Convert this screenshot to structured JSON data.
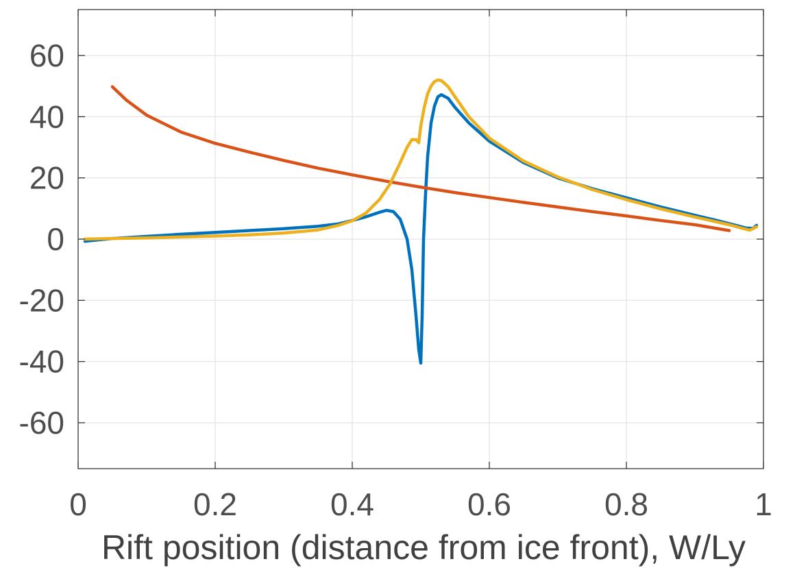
{
  "chart_data": {
    "type": "line",
    "title": "",
    "xlabel": "Rift position (distance from ice front), W/Ly",
    "ylabel": "",
    "xlim": [
      0,
      1
    ],
    "ylim": [
      -75,
      75
    ],
    "grid": true,
    "x_ticks": [
      0,
      0.2,
      0.4,
      0.6,
      0.8,
      1
    ],
    "x_tick_labels": [
      "0",
      "0.2",
      "0.4",
      "0.6",
      "0.8",
      "1"
    ],
    "y_ticks": [
      60,
      40,
      20,
      0,
      -20,
      -40,
      -60
    ],
    "y_tick_labels": [
      "60",
      "40",
      "20",
      "0",
      "-20",
      "-40",
      "-60"
    ],
    "series": [
      {
        "color": "#0072BD",
        "points": [
          [
            0.01,
            -0.7
          ],
          [
            0.05,
            0.2
          ],
          [
            0.1,
            0.9
          ],
          [
            0.15,
            1.6
          ],
          [
            0.2,
            2.2
          ],
          [
            0.25,
            2.8
          ],
          [
            0.3,
            3.4
          ],
          [
            0.35,
            4.2
          ],
          [
            0.38,
            5.0
          ],
          [
            0.4,
            6.1
          ],
          [
            0.42,
            7.3
          ],
          [
            0.44,
            8.8
          ],
          [
            0.45,
            9.4
          ],
          [
            0.46,
            9.0
          ],
          [
            0.47,
            6.5
          ],
          [
            0.48,
            0.0
          ],
          [
            0.487,
            -10.0
          ],
          [
            0.493,
            -25.0
          ],
          [
            0.497,
            -36.0
          ],
          [
            0.5,
            -40.5
          ],
          [
            0.502,
            -25.0
          ],
          [
            0.504,
            0.0
          ],
          [
            0.507,
            15.0
          ],
          [
            0.51,
            27.0
          ],
          [
            0.515,
            38.0
          ],
          [
            0.52,
            43.5
          ],
          [
            0.525,
            46.5
          ],
          [
            0.53,
            47.2
          ],
          [
            0.54,
            46.0
          ],
          [
            0.55,
            43.0
          ],
          [
            0.57,
            38.0
          ],
          [
            0.6,
            32.0
          ],
          [
            0.65,
            25.0
          ],
          [
            0.7,
            20.0
          ],
          [
            0.75,
            16.5
          ],
          [
            0.8,
            13.5
          ],
          [
            0.85,
            10.5
          ],
          [
            0.9,
            7.8
          ],
          [
            0.93,
            6.2
          ],
          [
            0.96,
            4.5
          ],
          [
            0.975,
            3.6
          ],
          [
            0.985,
            3.5
          ],
          [
            0.99,
            4.5
          ]
        ]
      },
      {
        "color": "#D95319",
        "points": [
          [
            0.05,
            49.8
          ],
          [
            0.07,
            45.5
          ],
          [
            0.1,
            40.5
          ],
          [
            0.15,
            35.0
          ],
          [
            0.2,
            31.3
          ],
          [
            0.25,
            28.4
          ],
          [
            0.3,
            25.7
          ],
          [
            0.35,
            23.2
          ],
          [
            0.4,
            21.0
          ],
          [
            0.45,
            18.9
          ],
          [
            0.5,
            17.0
          ],
          [
            0.55,
            15.2
          ],
          [
            0.6,
            13.6
          ],
          [
            0.65,
            12.0
          ],
          [
            0.7,
            10.5
          ],
          [
            0.75,
            9.0
          ],
          [
            0.8,
            7.6
          ],
          [
            0.85,
            6.1
          ],
          [
            0.9,
            4.7
          ],
          [
            0.95,
            2.8
          ]
        ]
      },
      {
        "color": "#EDB120",
        "points": [
          [
            0.01,
            0.0
          ],
          [
            0.05,
            0.2
          ],
          [
            0.1,
            0.4
          ],
          [
            0.15,
            0.7
          ],
          [
            0.2,
            1.0
          ],
          [
            0.25,
            1.4
          ],
          [
            0.3,
            2.0
          ],
          [
            0.35,
            3.0
          ],
          [
            0.38,
            4.5
          ],
          [
            0.4,
            6.0
          ],
          [
            0.42,
            8.5
          ],
          [
            0.44,
            13.0
          ],
          [
            0.455,
            18.0
          ],
          [
            0.47,
            25.0
          ],
          [
            0.48,
            30.0
          ],
          [
            0.487,
            32.5
          ],
          [
            0.493,
            32.5
          ],
          [
            0.497,
            31.5
          ],
          [
            0.5,
            37.0
          ],
          [
            0.505,
            43.0
          ],
          [
            0.51,
            47.5
          ],
          [
            0.515,
            50.0
          ],
          [
            0.52,
            51.5
          ],
          [
            0.525,
            52.0
          ],
          [
            0.53,
            51.8
          ],
          [
            0.54,
            49.8
          ],
          [
            0.55,
            46.5
          ],
          [
            0.57,
            40.0
          ],
          [
            0.6,
            33.0
          ],
          [
            0.65,
            25.5
          ],
          [
            0.7,
            20.3
          ],
          [
            0.75,
            16.2
          ],
          [
            0.8,
            12.9
          ],
          [
            0.85,
            9.9
          ],
          [
            0.9,
            7.2
          ],
          [
            0.95,
            4.7
          ],
          [
            0.97,
            3.5
          ],
          [
            0.98,
            2.9
          ],
          [
            0.99,
            4.0
          ]
        ]
      }
    ]
  }
}
